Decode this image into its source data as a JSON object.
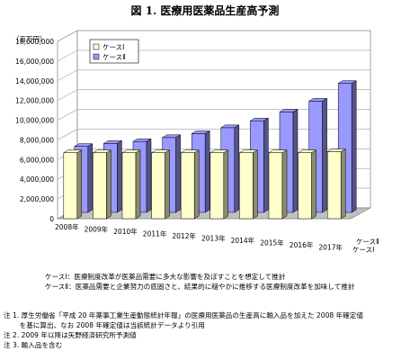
{
  "title": "図 1. 医療用医薬品生産高予測",
  "unit_label": "（百万円）",
  "chart_data": {
    "type": "bar",
    "variant": "3d-clustered-column",
    "categories": [
      "2008年",
      "2009年",
      "2010年",
      "2011年",
      "2012年",
      "2013年",
      "2014年",
      "2015年",
      "2016年",
      "2017年"
    ],
    "series": [
      {
        "name": "ケースⅠ",
        "color": "#ffffcc",
        "values": [
          6700000,
          6700000,
          6700000,
          6700000,
          6700000,
          6700000,
          6700000,
          6700000,
          6700000,
          6800000
        ]
      },
      {
        "name": "ケースⅡ",
        "color": "#9999ff",
        "values": [
          6700000,
          7000000,
          7200000,
          7600000,
          8000000,
          8600000,
          9300000,
          10200000,
          11300000,
          13100000
        ]
      }
    ],
    "depth_labels": [
      "ケースⅡ",
      "ケースⅠ"
    ],
    "y_ticks": [
      "0",
      "2,000,000",
      "4,000,000",
      "6,000,000",
      "8,000,000",
      "10,000,000",
      "12,000,000",
      "14,000,000",
      "16,000,000",
      "18,000,000"
    ],
    "ylim": [
      0,
      18000000
    ],
    "ylabel": "（百万円）",
    "legend_position": "top-left",
    "grid": true
  },
  "case_notes": [
    "ケースⅠ：医療制度改革が医薬品需要に多大な影響を及ぼすことを想定して推計",
    "ケースⅡ：医薬品需要と企業努力の底固さと、結果的に穏やかに推移する医療制度改革を加味して推計"
  ],
  "footnotes": [
    "注 1. 厚生労働省「平成 20 年薬事工業生産動態統計年報」の医療用医薬品の生産高に輸入品を加えた 2008 年確定値",
    "　　 を基に算出、なお 2008 年確定値は当該統計データより引用",
    "注 2. 2009 年以降は矢野経済研究所予測値",
    "注 3. 輸入品を含む"
  ]
}
